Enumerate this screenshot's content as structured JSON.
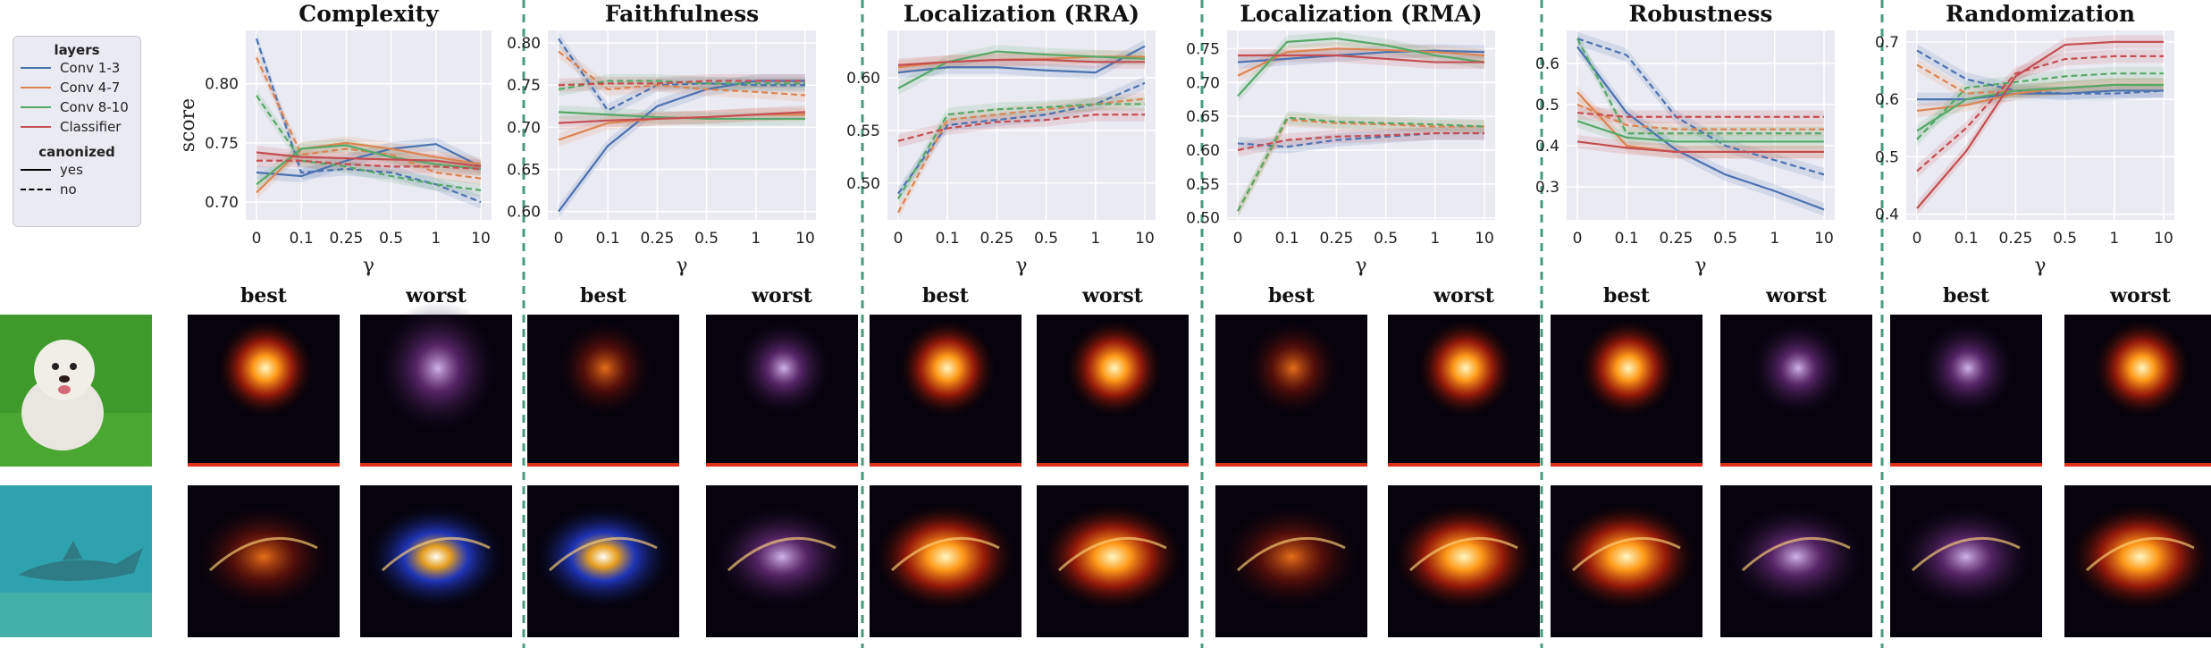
{
  "colors": {
    "Conv 1-3": "#4c72b0",
    "Conv 4-7": "#dd8452",
    "Conv 8-10": "#55a868",
    "Classifier": "#c44e52",
    "panel_bg": "#eaeaf2",
    "separator": "#4a9a7c"
  },
  "legend": {
    "title": "layers",
    "items": [
      "Conv 1-3",
      "Conv 4-7",
      "Conv 8-10",
      "Classifier"
    ],
    "style_title": "canonized",
    "styles": [
      "yes",
      "no"
    ]
  },
  "row_labels": {
    "best": "best",
    "worst": "worst"
  },
  "input_images": [
    {
      "icon": "dog-photo-icon"
    },
    {
      "icon": "shark-underwater-photo-icon"
    }
  ],
  "heatmap_icons": {
    "dog": [
      "dog-heatmap-best-complexity",
      "dog-heatmap-worst-complexity",
      "dog-heatmap-best-faithfulness",
      "dog-heatmap-worst-faithfulness",
      "dog-heatmap-best-rra",
      "dog-heatmap-worst-rra",
      "dog-heatmap-best-rma",
      "dog-heatmap-worst-rma",
      "dog-heatmap-best-robustness",
      "dog-heatmap-worst-robustness",
      "dog-heatmap-best-randomization",
      "dog-heatmap-worst-randomization"
    ],
    "shark": [
      "shark-heatmap-best-complexity",
      "shark-heatmap-worst-complexity",
      "shark-heatmap-best-faithfulness",
      "shark-heatmap-worst-faithfulness",
      "shark-heatmap-best-rra",
      "shark-heatmap-worst-rra",
      "shark-heatmap-best-rma",
      "shark-heatmap-worst-rma",
      "shark-heatmap-best-robustness",
      "shark-heatmap-worst-robustness",
      "shark-heatmap-best-randomization",
      "shark-heatmap-worst-randomization"
    ]
  },
  "chart_data": [
    {
      "type": "line",
      "title": "Complexity",
      "xlabel": "γ",
      "ylabel": "score",
      "categories": [
        "0",
        "0.1",
        "0.25",
        "0.5",
        "1",
        "10"
      ],
      "ylim": [
        0.685,
        0.845
      ],
      "yticks": [
        "0.70",
        "0.75",
        "0.80"
      ],
      "ytick_values": [
        0.7,
        0.75,
        0.8
      ],
      "series": [
        {
          "name": "Conv 1-3",
          "canonized": "yes",
          "values": [
            0.725,
            0.722,
            0.735,
            0.745,
            0.749,
            0.73
          ]
        },
        {
          "name": "Conv 1-3",
          "canonized": "no",
          "values": [
            0.838,
            0.725,
            0.728,
            0.725,
            0.715,
            0.7
          ]
        },
        {
          "name": "Conv 4-7",
          "canonized": "yes",
          "values": [
            0.708,
            0.745,
            0.75,
            0.745,
            0.738,
            0.732
          ]
        },
        {
          "name": "Conv 4-7",
          "canonized": "no",
          "values": [
            0.822,
            0.74,
            0.745,
            0.74,
            0.725,
            0.72
          ]
        },
        {
          "name": "Conv 8-10",
          "canonized": "yes",
          "values": [
            0.715,
            0.745,
            0.748,
            0.738,
            0.732,
            0.728
          ]
        },
        {
          "name": "Conv 8-10",
          "canonized": "no",
          "values": [
            0.79,
            0.735,
            0.73,
            0.722,
            0.715,
            0.71
          ]
        },
        {
          "name": "Classifier",
          "canonized": "yes",
          "values": [
            0.742,
            0.738,
            0.737,
            0.736,
            0.735,
            0.73
          ]
        },
        {
          "name": "Classifier",
          "canonized": "no",
          "values": [
            0.735,
            0.735,
            0.732,
            0.73,
            0.73,
            0.728
          ]
        }
      ]
    },
    {
      "type": "line",
      "title": "Faithfulness",
      "xlabel": "γ",
      "ylabel": "",
      "categories": [
        "0",
        "0.1",
        "0.25",
        "0.5",
        "1",
        "10"
      ],
      "ylim": [
        0.59,
        0.815
      ],
      "yticks": [
        "0.60",
        "0.65",
        "0.70",
        "0.75",
        "0.80"
      ],
      "ytick_values": [
        0.6,
        0.65,
        0.7,
        0.75,
        0.8
      ],
      "series": [
        {
          "name": "Conv 1-3",
          "canonized": "yes",
          "values": [
            0.6,
            0.678,
            0.725,
            0.745,
            0.755,
            0.755
          ]
        },
        {
          "name": "Conv 1-3",
          "canonized": "no",
          "values": [
            0.805,
            0.72,
            0.75,
            0.752,
            0.75,
            0.75
          ]
        },
        {
          "name": "Conv 4-7",
          "canonized": "yes",
          "values": [
            0.685,
            0.705,
            0.71,
            0.712,
            0.715,
            0.715
          ]
        },
        {
          "name": "Conv 4-7",
          "canonized": "no",
          "values": [
            0.79,
            0.745,
            0.75,
            0.745,
            0.742,
            0.738
          ]
        },
        {
          "name": "Conv 8-10",
          "canonized": "yes",
          "values": [
            0.718,
            0.715,
            0.712,
            0.71,
            0.71,
            0.71
          ]
        },
        {
          "name": "Conv 8-10",
          "canonized": "no",
          "values": [
            0.745,
            0.755,
            0.755,
            0.752,
            0.752,
            0.752
          ]
        },
        {
          "name": "Classifier",
          "canonized": "yes",
          "values": [
            0.705,
            0.708,
            0.71,
            0.712,
            0.715,
            0.718
          ]
        },
        {
          "name": "Classifier",
          "canonized": "no",
          "values": [
            0.75,
            0.752,
            0.752,
            0.755,
            0.755,
            0.755
          ]
        }
      ]
    },
    {
      "type": "line",
      "title": "Localization (RRA)",
      "xlabel": "γ",
      "ylabel": "",
      "categories": [
        "0",
        "0.1",
        "0.25",
        "0.5",
        "1",
        "10"
      ],
      "ylim": [
        0.465,
        0.645
      ],
      "yticks": [
        "0.50",
        "0.55",
        "0.60"
      ],
      "ytick_values": [
        0.5,
        0.55,
        0.6
      ],
      "series": [
        {
          "name": "Conv 1-3",
          "canonized": "yes",
          "values": [
            0.605,
            0.61,
            0.61,
            0.607,
            0.605,
            0.63
          ]
        },
        {
          "name": "Conv 1-3",
          "canonized": "no",
          "values": [
            0.49,
            0.555,
            0.56,
            0.565,
            0.575,
            0.595
          ]
        },
        {
          "name": "Conv 4-7",
          "canonized": "yes",
          "values": [
            0.61,
            0.615,
            0.617,
            0.618,
            0.62,
            0.62
          ]
        },
        {
          "name": "Conv 4-7",
          "canonized": "no",
          "values": [
            0.472,
            0.56,
            0.565,
            0.57,
            0.575,
            0.58
          ]
        },
        {
          "name": "Conv 8-10",
          "canonized": "yes",
          "values": [
            0.59,
            0.615,
            0.625,
            0.622,
            0.62,
            0.618
          ]
        },
        {
          "name": "Conv 8-10",
          "canonized": "no",
          "values": [
            0.485,
            0.565,
            0.57,
            0.572,
            0.575,
            0.575
          ]
        },
        {
          "name": "Classifier",
          "canonized": "yes",
          "values": [
            0.612,
            0.615,
            0.617,
            0.617,
            0.615,
            0.615
          ]
        },
        {
          "name": "Classifier",
          "canonized": "no",
          "values": [
            0.54,
            0.552,
            0.558,
            0.56,
            0.565,
            0.565
          ]
        }
      ]
    },
    {
      "type": "line",
      "title": "Localization (RMA)",
      "xlabel": "γ",
      "ylabel": "",
      "categories": [
        "0",
        "0.1",
        "0.25",
        "0.5",
        "1",
        "10"
      ],
      "ylim": [
        0.497,
        0.777
      ],
      "yticks": [
        "0.50",
        "0.55",
        "0.60",
        "0.65",
        "0.70",
        "0.75"
      ],
      "ytick_values": [
        0.5,
        0.55,
        0.6,
        0.65,
        0.7,
        0.75
      ],
      "series": [
        {
          "name": "Conv 1-3",
          "canonized": "yes",
          "values": [
            0.73,
            0.735,
            0.74,
            0.745,
            0.747,
            0.745
          ]
        },
        {
          "name": "Conv 1-3",
          "canonized": "no",
          "values": [
            0.61,
            0.605,
            0.615,
            0.62,
            0.625,
            0.625
          ]
        },
        {
          "name": "Conv 4-7",
          "canonized": "yes",
          "values": [
            0.71,
            0.745,
            0.75,
            0.748,
            0.745,
            0.74
          ]
        },
        {
          "name": "Conv 4-7",
          "canonized": "no",
          "values": [
            0.51,
            0.645,
            0.64,
            0.638,
            0.635,
            0.635
          ]
        },
        {
          "name": "Conv 8-10",
          "canonized": "yes",
          "values": [
            0.68,
            0.76,
            0.765,
            0.755,
            0.74,
            0.73
          ]
        },
        {
          "name": "Conv 8-10",
          "canonized": "no",
          "values": [
            0.51,
            0.648,
            0.642,
            0.64,
            0.638,
            0.635
          ]
        },
        {
          "name": "Classifier",
          "canonized": "yes",
          "values": [
            0.74,
            0.74,
            0.74,
            0.735,
            0.73,
            0.73
          ]
        },
        {
          "name": "Classifier",
          "canonized": "no",
          "values": [
            0.6,
            0.615,
            0.62,
            0.622,
            0.625,
            0.625
          ]
        }
      ]
    },
    {
      "type": "line",
      "title": "Robustness",
      "xlabel": "γ",
      "ylabel": "",
      "categories": [
        "0",
        "0.1",
        "0.25",
        "0.5",
        "1",
        "10"
      ],
      "ylim": [
        0.22,
        0.68
      ],
      "yticks": [
        "0.3",
        "0.4",
        "0.5",
        "0.6"
      ],
      "ytick_values": [
        0.3,
        0.4,
        0.5,
        0.6
      ],
      "series": [
        {
          "name": "Conv 1-3",
          "canonized": "yes",
          "values": [
            0.64,
            0.48,
            0.39,
            0.33,
            0.29,
            0.245
          ]
        },
        {
          "name": "Conv 1-3",
          "canonized": "no",
          "values": [
            0.66,
            0.62,
            0.47,
            0.4,
            0.365,
            0.33
          ]
        },
        {
          "name": "Conv 4-7",
          "canonized": "yes",
          "values": [
            0.53,
            0.4,
            0.385,
            0.385,
            0.385,
            0.385
          ]
        },
        {
          "name": "Conv 4-7",
          "canonized": "no",
          "values": [
            0.5,
            0.45,
            0.44,
            0.44,
            0.44,
            0.44
          ]
        },
        {
          "name": "Conv 8-10",
          "canonized": "yes",
          "values": [
            0.46,
            0.42,
            0.41,
            0.41,
            0.41,
            0.41
          ]
        },
        {
          "name": "Conv 8-10",
          "canonized": "no",
          "values": [
            0.66,
            0.43,
            0.43,
            0.43,
            0.43,
            0.43
          ]
        },
        {
          "name": "Classifier",
          "canonized": "yes",
          "values": [
            0.41,
            0.395,
            0.385,
            0.385,
            0.385,
            0.385
          ]
        },
        {
          "name": "Classifier",
          "canonized": "no",
          "values": [
            0.48,
            0.47,
            0.47,
            0.47,
            0.47,
            0.47
          ]
        }
      ]
    },
    {
      "type": "line",
      "title": "Randomization",
      "xlabel": "γ",
      "ylabel": "",
      "categories": [
        "0",
        "0.1",
        "0.25",
        "0.5",
        "1",
        "10"
      ],
      "ylim": [
        0.39,
        0.72
      ],
      "yticks": [
        "0.4",
        "0.5",
        "0.6",
        "0.7"
      ],
      "ytick_values": [
        0.4,
        0.5,
        0.6,
        0.7
      ],
      "series": [
        {
          "name": "Conv 1-3",
          "canonized": "yes",
          "values": [
            0.6,
            0.6,
            0.61,
            0.61,
            0.615,
            0.615
          ]
        },
        {
          "name": "Conv 1-3",
          "canonized": "no",
          "values": [
            0.685,
            0.635,
            0.615,
            0.61,
            0.61,
            0.615
          ]
        },
        {
          "name": "Conv 4-7",
          "canonized": "yes",
          "values": [
            0.58,
            0.59,
            0.61,
            0.62,
            0.625,
            0.625
          ]
        },
        {
          "name": "Conv 4-7",
          "canonized": "no",
          "values": [
            0.66,
            0.61,
            0.615,
            0.62,
            0.625,
            0.625
          ]
        },
        {
          "name": "Conv 8-10",
          "canonized": "yes",
          "values": [
            0.545,
            0.6,
            0.615,
            0.62,
            0.625,
            0.625
          ]
        },
        {
          "name": "Conv 8-10",
          "canonized": "no",
          "values": [
            0.53,
            0.62,
            0.63,
            0.64,
            0.645,
            0.645
          ]
        },
        {
          "name": "Classifier",
          "canonized": "yes",
          "values": [
            0.41,
            0.51,
            0.64,
            0.695,
            0.7,
            0.7
          ]
        },
        {
          "name": "Classifier",
          "canonized": "no",
          "values": [
            0.475,
            0.55,
            0.645,
            0.67,
            0.675,
            0.675
          ]
        }
      ]
    }
  ]
}
